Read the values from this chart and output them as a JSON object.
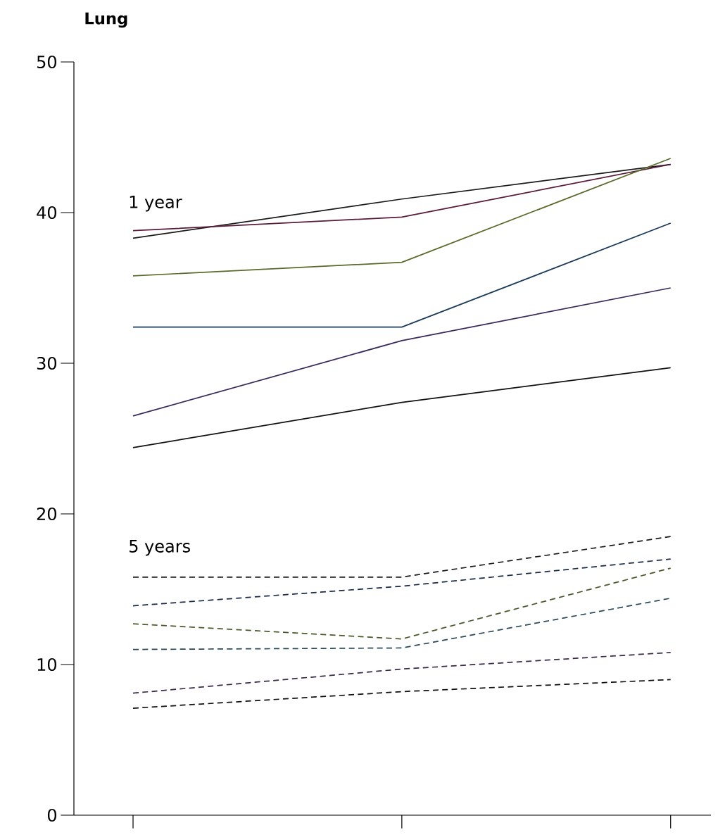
{
  "chart_data": {
    "type": "line",
    "title": "Lung",
    "categories": [
      null,
      null,
      null
    ],
    "ylim": [
      0,
      50
    ],
    "yticks": [
      0,
      10,
      20,
      30,
      40,
      50
    ],
    "tick_labels": "y",
    "marker": "none",
    "annotations": [
      "1 year",
      "5 years"
    ],
    "series": [
      {
        "color": "#1a1a1a",
        "values": [
          38.3,
          40.9,
          43.2
        ],
        "line_style": "solid"
      },
      {
        "color": "#5a1a3a",
        "values": [
          38.8,
          39.7,
          43.2
        ],
        "line_style": "solid"
      },
      {
        "color": "#5a6a2a",
        "values": [
          35.8,
          36.7,
          43.6
        ],
        "line_style": "solid"
      },
      {
        "color": "#1a3a5a",
        "values": [
          32.4,
          32.4,
          39.3
        ],
        "line_style": "solid"
      },
      {
        "color": "#3a2a5a",
        "values": [
          26.5,
          31.5,
          35.0
        ],
        "line_style": "solid"
      },
      {
        "color": "#111111",
        "values": [
          24.4,
          27.4,
          29.7
        ],
        "line_style": "solid"
      },
      {
        "color": "#1a1a1a",
        "values": [
          15.8,
          15.8,
          18.5
        ],
        "line_style": "dashed"
      },
      {
        "color": "#1a2a4a",
        "values": [
          13.9,
          15.2,
          17.0
        ],
        "line_style": "dashed"
      },
      {
        "color": "#4a5a2a",
        "values": [
          12.7,
          11.7,
          16.4
        ],
        "line_style": "dashed"
      },
      {
        "color": "#2a4a5a",
        "values": [
          11.0,
          11.1,
          14.4
        ],
        "line_style": "dashed"
      },
      {
        "color": "#3a2a4a",
        "values": [
          8.1,
          9.7,
          10.8
        ],
        "line_style": "dashed"
      },
      {
        "color": "#111111",
        "values": [
          7.1,
          8.2,
          9.0
        ],
        "line_style": "dashed"
      }
    ]
  }
}
